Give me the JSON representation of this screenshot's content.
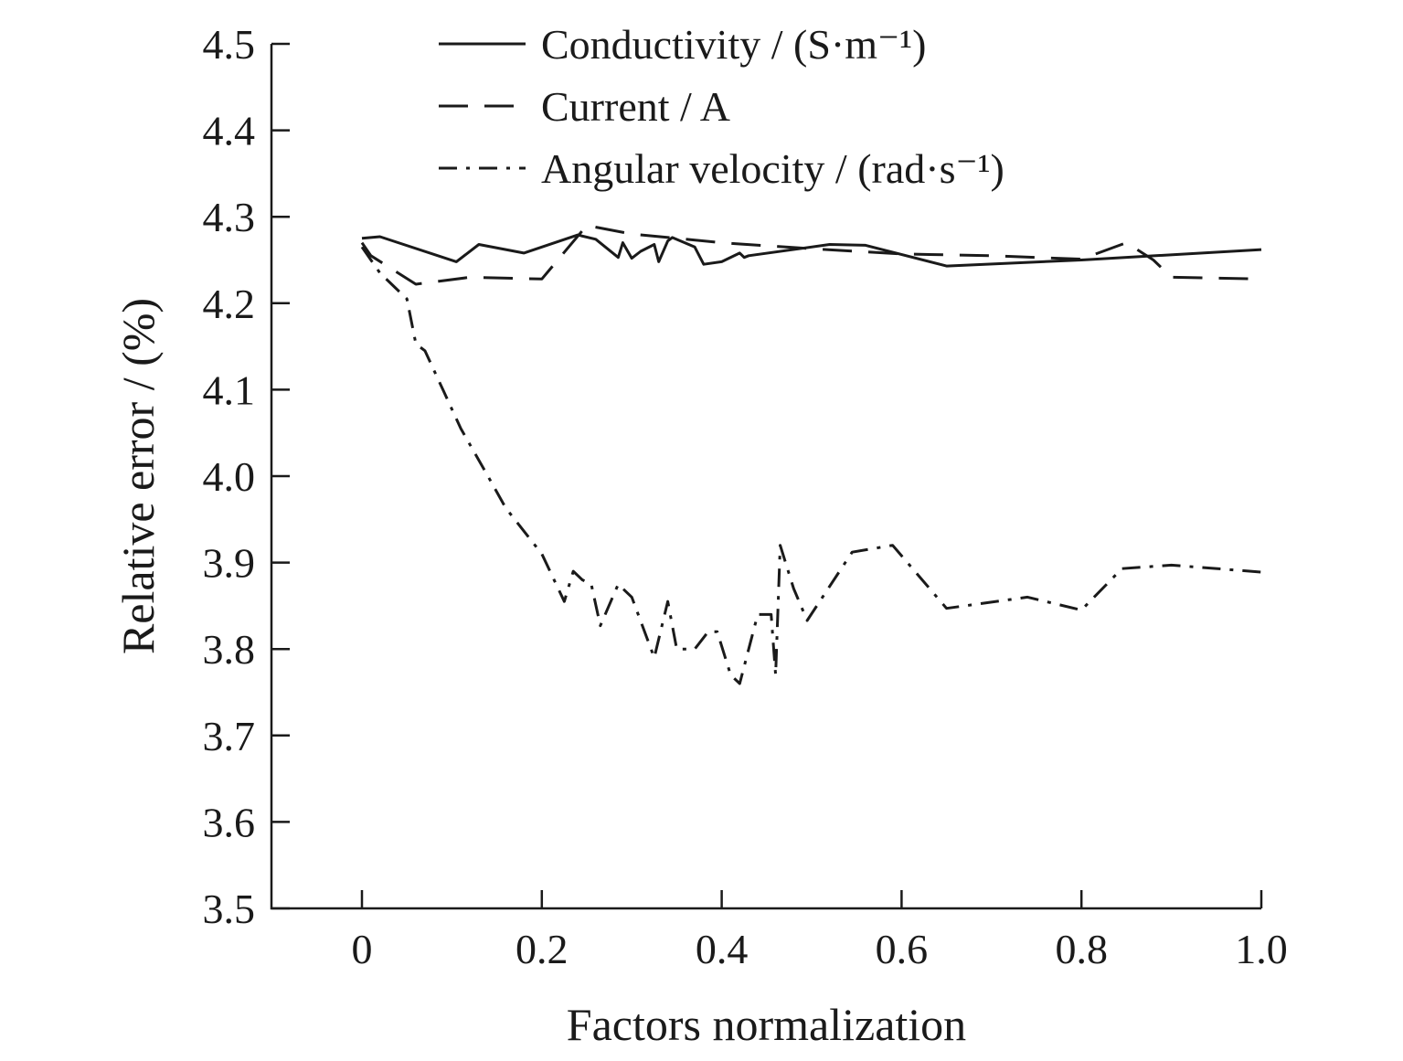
{
  "chart_data": {
    "type": "line",
    "xlabel": "Factors normalization",
    "ylabel": "Relative error / (%)",
    "xlim": [
      -0.1,
      1.0
    ],
    "ylim": [
      3.5,
      4.5
    ],
    "xticks": [
      0,
      0.2,
      0.4,
      0.6,
      0.8,
      1.0
    ],
    "xtick_labels": [
      "0",
      "0.2",
      "0.4",
      "0.6",
      "0.8",
      "1.0"
    ],
    "yticks": [
      3.5,
      3.6,
      3.7,
      3.8,
      3.9,
      4.0,
      4.1,
      4.2,
      4.3,
      4.4,
      4.5
    ],
    "ytick_labels": [
      "3.5",
      "3.6",
      "3.7",
      "3.8",
      "3.9",
      "4.0",
      "4.1",
      "4.2",
      "4.3",
      "4.4",
      "4.5"
    ],
    "grid": false,
    "legend_position": "top",
    "series": [
      {
        "name": "Conductivity / (S·m⁻¹)",
        "style": "solid",
        "x": [
          0,
          0.02,
          0.105,
          0.13,
          0.18,
          0.24,
          0.26,
          0.285,
          0.29,
          0.3,
          0.31,
          0.325,
          0.33,
          0.34,
          0.345,
          0.37,
          0.38,
          0.4,
          0.42,
          0.425,
          0.43,
          0.52,
          0.56,
          0.65,
          0.8,
          1.0
        ],
        "y": [
          4.275,
          4.277,
          4.248,
          4.268,
          4.258,
          4.279,
          4.274,
          4.253,
          4.27,
          4.252,
          4.26,
          4.268,
          4.248,
          4.272,
          4.276,
          4.265,
          4.245,
          4.248,
          4.258,
          4.253,
          4.255,
          4.268,
          4.267,
          4.243,
          4.25,
          4.262
        ]
      },
      {
        "name": "Current / A",
        "style": "dashed",
        "x": [
          0,
          0.01,
          0.06,
          0.12,
          0.2,
          0.25,
          0.3,
          0.35,
          0.4,
          0.5,
          0.6,
          0.7,
          0.8,
          0.85,
          0.88,
          0.9,
          1.0
        ],
        "y": [
          4.27,
          4.255,
          4.222,
          4.23,
          4.228,
          4.29,
          4.28,
          4.275,
          4.27,
          4.263,
          4.257,
          4.255,
          4.251,
          4.27,
          4.25,
          4.23,
          4.228
        ]
      },
      {
        "name": "Angular velocity / (rad·s⁻¹)",
        "style": "dashdot",
        "x": [
          0,
          0.02,
          0.05,
          0.06,
          0.07,
          0.09,
          0.11,
          0.14,
          0.16,
          0.2,
          0.225,
          0.235,
          0.245,
          0.255,
          0.265,
          0.285,
          0.3,
          0.325,
          0.34,
          0.35,
          0.37,
          0.385,
          0.395,
          0.41,
          0.42,
          0.44,
          0.455,
          0.46,
          0.465,
          0.48,
          0.495,
          0.545,
          0.59,
          0.65,
          0.74,
          0.8,
          0.845,
          0.9,
          1.0
        ],
        "y": [
          4.265,
          4.235,
          4.205,
          4.153,
          4.145,
          4.1,
          4.055,
          4.0,
          3.963,
          3.91,
          3.855,
          3.89,
          3.88,
          3.875,
          3.827,
          3.875,
          3.86,
          3.79,
          3.855,
          3.8,
          3.8,
          3.82,
          3.82,
          3.77,
          3.76,
          3.84,
          3.84,
          3.77,
          3.92,
          3.87,
          3.833,
          3.912,
          3.92,
          3.847,
          3.86,
          3.845,
          3.893,
          3.897,
          3.889
        ]
      }
    ]
  }
}
